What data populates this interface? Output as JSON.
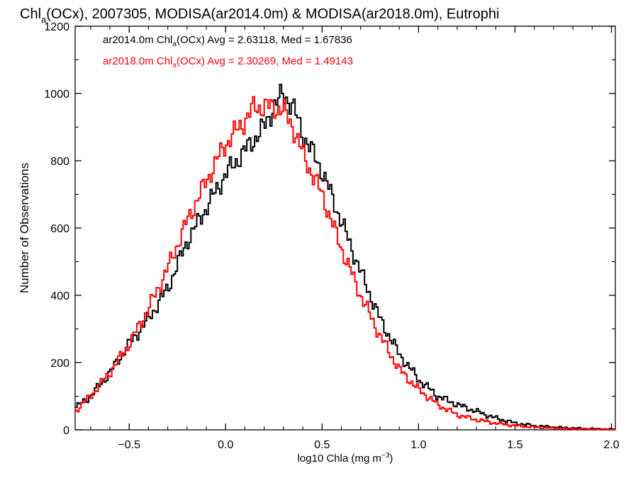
{
  "chart_data": {
    "type": "line",
    "title_main": "Chl",
    "title_sub": "a",
    "title_rest": "(OCx), 2007305, MODISA(ar2014.0m) & MODISA(ar2018.0m), Eutrophi",
    "xlabel_main": "log10 Chla (mg m",
    "xlabel_sup": "−3",
    "xlabel_end": ")",
    "ylabel": "Number of Observations",
    "xlim": [
      -0.78,
      2.02
    ],
    "ylim": [
      0,
      1200
    ],
    "xticks": [
      -0.5,
      0.0,
      0.5,
      1.0,
      1.5,
      2.0
    ],
    "xtick_labels": [
      "−0.5",
      "0.0",
      "0.5",
      "1.0",
      "1.5",
      "2.0"
    ],
    "yticks": [
      0,
      200,
      400,
      600,
      800,
      1000,
      1200
    ],
    "ytick_labels": [
      "0",
      "200",
      "400",
      "600",
      "800",
      "1000",
      "1200"
    ],
    "grid": false,
    "legend_position": "top-left",
    "series": [
      {
        "label_pre": "ar2014.0m Chl",
        "label_sub": "a",
        "label_post": "(OCx) Avg = 2.63118, Med = 1.67836",
        "color": "#000000",
        "x": [
          -0.78,
          -0.7,
          -0.6,
          -0.5,
          -0.4,
          -0.3,
          -0.2,
          -0.1,
          0.0,
          0.1,
          0.2,
          0.25,
          0.3,
          0.35,
          0.4,
          0.5,
          0.6,
          0.7,
          0.8,
          0.9,
          1.0,
          1.1,
          1.2,
          1.3,
          1.4,
          1.5,
          1.6,
          1.7,
          1.8,
          1.9,
          2.02
        ],
        "values": [
          65,
          100,
          170,
          255,
          330,
          420,
          560,
          660,
          760,
          830,
          900,
          960,
          1000,
          960,
          880,
          770,
          620,
          470,
          330,
          225,
          150,
          100,
          75,
          55,
          35,
          20,
          12,
          8,
          5,
          3,
          2
        ]
      },
      {
        "label_pre": "ar2018.0m Chl",
        "label_sub": "a",
        "label_post": "(OCx) Avg = 2.30269, Med = 1.49143",
        "color": "#ff0000",
        "x": [
          -0.78,
          -0.7,
          -0.6,
          -0.5,
          -0.4,
          -0.3,
          -0.2,
          -0.1,
          0.0,
          0.1,
          0.15,
          0.2,
          0.25,
          0.3,
          0.35,
          0.4,
          0.5,
          0.6,
          0.7,
          0.8,
          0.9,
          1.0,
          1.1,
          1.2,
          1.3,
          1.4,
          1.5,
          1.6,
          1.7,
          1.8,
          1.9,
          2.02
        ],
        "values": [
          55,
          100,
          170,
          255,
          360,
          480,
          620,
          740,
          850,
          920,
          960,
          960,
          960,
          950,
          900,
          820,
          700,
          540,
          400,
          280,
          180,
          120,
          75,
          45,
          30,
          20,
          12,
          8,
          5,
          3,
          2,
          1
        ]
      }
    ]
  }
}
